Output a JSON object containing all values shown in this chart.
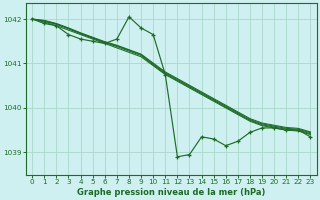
{
  "bg_color": "#cff0f0",
  "grid_color": "#aad8cc",
  "line_color": "#1e6b28",
  "text_color": "#1e6b28",
  "xlabel": "Graphe pression niveau de la mer (hPa)",
  "ylim": [
    1038.5,
    1042.35
  ],
  "xlim": [
    -0.5,
    23.5
  ],
  "yticks": [
    1039,
    1040,
    1041,
    1042
  ],
  "xticks": [
    0,
    1,
    2,
    3,
    4,
    5,
    6,
    7,
    8,
    9,
    10,
    11,
    12,
    13,
    14,
    15,
    16,
    17,
    18,
    19,
    20,
    21,
    22,
    23
  ],
  "line_main": [
    1042.0,
    1041.9,
    1041.85,
    1041.65,
    1041.55,
    1041.5,
    1041.45,
    1041.55,
    1042.05,
    1041.8,
    1041.65,
    1040.75,
    1038.9,
    1038.95,
    1039.35,
    1039.3,
    1039.15,
    1039.25,
    1039.45,
    1039.55,
    1039.55,
    1039.5,
    1039.5,
    1039.35
  ],
  "line_smooth1": [
    1042.0,
    1041.93,
    1041.85,
    1041.75,
    1041.65,
    1041.55,
    1041.45,
    1041.35,
    1041.25,
    1041.15,
    1040.95,
    1040.75,
    1040.6,
    1040.45,
    1040.3,
    1040.15,
    1040.0,
    1039.85,
    1039.7,
    1039.6,
    1039.55,
    1039.5,
    1039.48,
    1039.4
  ],
  "line_smooth2": [
    1042.0,
    1041.95,
    1041.88,
    1041.78,
    1041.67,
    1041.57,
    1041.47,
    1041.38,
    1041.28,
    1041.18,
    1040.97,
    1040.77,
    1040.62,
    1040.47,
    1040.32,
    1040.17,
    1040.02,
    1039.87,
    1039.72,
    1039.62,
    1039.57,
    1039.52,
    1039.5,
    1039.42
  ],
  "line_smooth3": [
    1042.0,
    1041.96,
    1041.89,
    1041.79,
    1041.68,
    1041.58,
    1041.48,
    1041.4,
    1041.3,
    1041.2,
    1040.99,
    1040.79,
    1040.64,
    1040.49,
    1040.34,
    1040.19,
    1040.04,
    1039.89,
    1039.74,
    1039.64,
    1039.59,
    1039.54,
    1039.52,
    1039.44
  ],
  "line_smooth4": [
    1042.0,
    1041.97,
    1041.9,
    1041.8,
    1041.69,
    1041.59,
    1041.49,
    1041.41,
    1041.31,
    1041.21,
    1041.01,
    1040.81,
    1040.66,
    1040.51,
    1040.36,
    1040.21,
    1040.06,
    1039.91,
    1039.76,
    1039.66,
    1039.61,
    1039.56,
    1039.54,
    1039.46
  ]
}
